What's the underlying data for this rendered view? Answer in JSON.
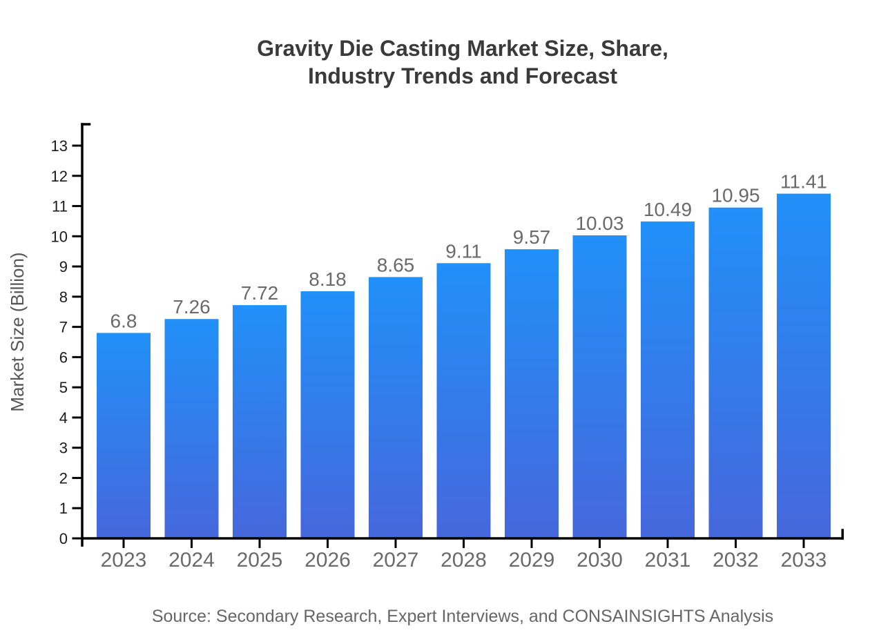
{
  "page": {
    "title": "Gravity Die Casting Market Size, Share,\nIndustry Trends and Forecast"
  },
  "chart_data": {
    "type": "bar",
    "title": "Gravity Die Casting Market Size, Share, Industry Trends and Forecast",
    "categories": [
      "2023",
      "2024",
      "2025",
      "2026",
      "2027",
      "2028",
      "2029",
      "2030",
      "2031",
      "2032",
      "2033"
    ],
    "values": [
      6.8,
      7.26,
      7.72,
      8.18,
      8.65,
      9.11,
      9.57,
      10.03,
      10.49,
      10.95,
      11.41
    ],
    "xlabel": "",
    "ylabel": "Market Size (Billion)",
    "ylim": [
      0,
      13
    ],
    "ytick_step": 1,
    "grid": false,
    "legend": false,
    "value_labels_shown": true,
    "source": "Source: Secondary Research, Expert Interviews, and CONSAINSIGHTS Analysis",
    "colors": {
      "bar_gradient_top": "#2190F8",
      "bar_gradient_bottom": "#4667DC",
      "axis": "#000000",
      "ytick_label": "#1A1A1A",
      "xtick_label": "#6A6A6A",
      "value_label": "#6A6A6A",
      "title": "#3A3A3A",
      "axis_label": "#555555",
      "source": "#666666"
    }
  }
}
